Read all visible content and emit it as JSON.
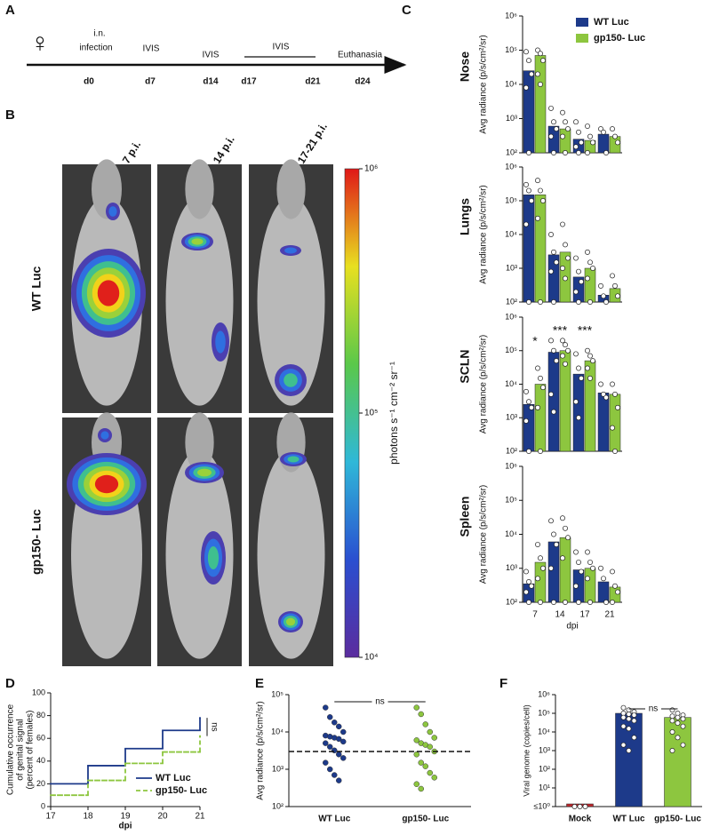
{
  "panel_labels": [
    "A",
    "B",
    "C",
    "D",
    "E",
    "F"
  ],
  "timeline": {
    "symbol": "♀",
    "labels": [
      "i.n.",
      "infection",
      "IVIS",
      "IVIS",
      "IVIS",
      "Euthanasia"
    ],
    "days": [
      "d0",
      "d7",
      "d14",
      "d17",
      "d21",
      "d24"
    ]
  },
  "imaging": {
    "columns": [
      "Day 7 p.i.",
      "Day 14 p.i.",
      "Day 17-21 p.i."
    ],
    "rows": [
      "WT Luc",
      "gp150- Luc"
    ],
    "colorbar": {
      "label": "photons s⁻¹ cm⁻² sr⁻¹",
      "lim": [
        10000,
        1000000
      ],
      "log": true,
      "ticks": [
        {
          "value": 10000,
          "label": "10⁴"
        },
        {
          "value": 100000,
          "label": "10⁵"
        },
        {
          "value": 1000000,
          "label": "10⁶"
        }
      ]
    }
  },
  "chart_data": [
    {
      "type": "bar",
      "title": "Nose",
      "ylabel": "Avg radiance (p/s/cm²/sr)",
      "log": true,
      "legend": "upper right",
      "ylim": [
        100,
        1000000
      ],
      "yticks": [
        {
          "value": 100,
          "label": "10²"
        },
        {
          "value": 1000,
          "label": "10³"
        },
        {
          "value": 10000,
          "label": "10⁴"
        },
        {
          "value": 100000,
          "label": "10⁵"
        },
        {
          "value": 1000000,
          "label": "10⁶"
        }
      ],
      "series": [
        {
          "name": "WT Luc",
          "color": "#1d3a8a",
          "values": [
            25000,
            600,
            250,
            350
          ],
          "points": [
            [
              90000,
              50000,
              20000,
              8000,
              100
            ],
            [
              2000,
              800,
              500,
              300,
              100
            ],
            [
              800,
              400,
              200,
              150,
              100
            ],
            [
              500,
              400,
              100
            ]
          ]
        },
        {
          "name": "gp150- Luc",
          "color": "#8dc63f",
          "values": [
            70000,
            500,
            230,
            300
          ],
          "points": [
            [
              100000,
              80000,
              50000,
              20000,
              10000
            ],
            [
              1500,
              800,
              500,
              300,
              100
            ],
            [
              600,
              300,
              200,
              100
            ],
            [
              500,
              300,
              200
            ]
          ]
        }
      ]
    },
    {
      "type": "bar",
      "title": "Lungs",
      "ylabel": "Avg radiance (p/s/cm²/sr)",
      "log": true,
      "ylim": [
        100,
        1000000
      ],
      "yticks": [
        {
          "value": 100,
          "label": "10²"
        },
        {
          "value": 1000,
          "label": "10³"
        },
        {
          "value": 10000,
          "label": "10⁴"
        },
        {
          "value": 100000,
          "label": "10⁵"
        },
        {
          "value": 1000000,
          "label": "10⁶"
        }
      ],
      "series": [
        {
          "color": "#1d3a8a",
          "values": [
            150000,
            2500,
            550,
            160
          ],
          "points": [
            [
              300000,
              200000,
              100000,
              20000,
              100
            ],
            [
              10000,
              3000,
              1500,
              800,
              100
            ],
            [
              2000,
              800,
              400,
              200,
              100
            ],
            [
              300,
              150,
              100
            ]
          ]
        },
        {
          "color": "#8dc63f",
          "values": [
            150000,
            3000,
            1000,
            250
          ],
          "points": [
            [
              400000,
              200000,
              100000,
              30000,
              100
            ],
            [
              20000,
              5000,
              2000,
              1000,
              500
            ],
            [
              3000,
              1500,
              1000,
              500,
              100
            ],
            [
              600,
              300,
              150
            ]
          ]
        }
      ]
    },
    {
      "type": "bar",
      "title": "SCLN",
      "ylabel": "Avg radiance (p/s/cm²/sr)",
      "log": true,
      "ylim": [
        100,
        1000000
      ],
      "yticks": [
        {
          "value": 100,
          "label": "10²"
        },
        {
          "value": 1000,
          "label": "10³"
        },
        {
          "value": 10000,
          "label": "10⁴"
        },
        {
          "value": 100000,
          "label": "10⁵"
        },
        {
          "value": 1000000,
          "label": "10⁶"
        }
      ],
      "annotations": [
        "*",
        "***",
        "***",
        null
      ],
      "series": [
        {
          "color": "#1d3a8a",
          "values": [
            2500,
            90000,
            20000,
            5500
          ],
          "points": [
            [
              6000,
              3000,
              2000,
              800,
              100
            ],
            [
              200000,
              100000,
              50000,
              5000,
              1500
            ],
            [
              80000,
              30000,
              15000,
              3000,
              1000
            ],
            [
              10000,
              5000,
              4000
            ]
          ]
        },
        {
          "color": "#8dc63f",
          "values": [
            10000,
            100000,
            50000,
            5000
          ],
          "points": [
            [
              30000,
              15000,
              8000,
              2000,
              100
            ],
            [
              200000,
              150000,
              100000,
              70000,
              40000
            ],
            [
              100000,
              70000,
              50000,
              30000,
              15000
            ],
            [
              10000,
              5000,
              2000,
              500,
              100
            ]
          ]
        }
      ]
    },
    {
      "type": "bar",
      "title": "Spleen",
      "ylabel": "Avg radiance (p/s/cm²/sr)",
      "xlabel": "dpi",
      "log": true,
      "categories": [
        "7",
        "14",
        "17",
        "21"
      ],
      "ylim": [
        100,
        1000000
      ],
      "yticks": [
        {
          "value": 100,
          "label": "10²"
        },
        {
          "value": 1000,
          "label": "10³"
        },
        {
          "value": 10000,
          "label": "10⁴"
        },
        {
          "value": 100000,
          "label": "10⁵"
        },
        {
          "value": 1000000,
          "label": "10⁶"
        }
      ],
      "series": [
        {
          "color": "#1d3a8a",
          "values": [
            350,
            6000,
            900,
            400
          ],
          "points": [
            [
              800,
              400,
              300,
              200,
              100
            ],
            [
              25000,
              10000,
              5000,
              1000,
              100
            ],
            [
              3000,
              1500,
              800,
              300,
              100
            ],
            [
              1000,
              500,
              100
            ]
          ]
        },
        {
          "color": "#8dc63f",
          "values": [
            1500,
            8000,
            1000,
            280
          ],
          "points": [
            [
              5000,
              2000,
              1000,
              500,
              100
            ],
            [
              30000,
              15000,
              8000,
              2000,
              100
            ],
            [
              3000,
              1500,
              1000,
              500,
              100
            ],
            [
              800,
              300,
              200,
              100
            ]
          ]
        }
      ]
    },
    {
      "type": "step",
      "ylabel": [
        "Cumulative occurrence",
        "of genital signal",
        "(percent of females)"
      ],
      "xlabel": "dpi",
      "x": [
        17,
        18,
        19,
        20,
        21
      ],
      "xlim": [
        17,
        21
      ],
      "xticks": [
        17,
        18,
        19,
        20,
        21
      ],
      "ylim": [
        0,
        100
      ],
      "yticks": [
        0,
        20,
        40,
        60,
        80,
        100
      ],
      "legend": "lower right",
      "annotation": "ns",
      "series": [
        {
          "name": "WT Luc",
          "color": "#1d3a8a",
          "dashed": false,
          "values": [
            20,
            36,
            51,
            67,
            78
          ]
        },
        {
          "name": "gp150- Luc",
          "color": "#8dc63f",
          "dashed": true,
          "values": [
            10,
            23,
            38,
            48,
            62
          ]
        }
      ]
    },
    {
      "type": "strip",
      "ylabel": "Avg radiance (p/s/cm²/sr)",
      "log": true,
      "annotation": "ns",
      "threshold": 3000,
      "categories": [
        "WT Luc",
        "gp150- Luc"
      ],
      "ylim": [
        100,
        100000
      ],
      "yticks": [
        {
          "value": 100,
          "label": "10²"
        },
        {
          "value": 1000,
          "label": "10³"
        },
        {
          "value": 10000,
          "label": "10⁴"
        },
        {
          "value": 100000,
          "label": "10⁵"
        }
      ],
      "groups": [
        {
          "color": "#1d3a8a",
          "values": [
            45000,
            25000,
            18000,
            14000,
            10000,
            8000,
            7500,
            7000,
            6500,
            5500,
            5000,
            4000,
            3200,
            2500,
            2000,
            1500,
            1000,
            700,
            500
          ]
        },
        {
          "color": "#8dc63f",
          "values": [
            45000,
            30000,
            16000,
            10000,
            7000,
            6000,
            5000,
            4500,
            4000,
            3000,
            2500,
            1500,
            1200,
            800,
            600,
            400,
            300
          ]
        }
      ]
    },
    {
      "type": "bar",
      "ylabel": "Viral genome (copies/cell)",
      "log": true,
      "annotation": "ns",
      "categories": [
        "Mock",
        "WT Luc",
        "gp150- Luc"
      ],
      "values": [
        1,
        100000,
        60000
      ],
      "colors": [
        "#c0272d",
        "#1d3a8a",
        "#8dc63f"
      ],
      "points": [
        [
          1,
          1,
          1
        ],
        [
          200000,
          150000,
          120000,
          100000,
          90000,
          80000,
          60000,
          50000,
          40000,
          20000,
          15000,
          5000,
          2000,
          1000
        ],
        [
          150000,
          100000,
          80000,
          70000,
          60000,
          50000,
          40000,
          30000,
          20000,
          10000,
          5000,
          2000,
          1000
        ]
      ],
      "ylim": [
        1,
        1000000
      ],
      "yticks": [
        {
          "value": 1,
          "label": "≤10⁰"
        },
        {
          "value": 10,
          "label": "10¹"
        },
        {
          "value": 100,
          "label": "10²"
        },
        {
          "value": 1000,
          "label": "10³"
        },
        {
          "value": 10000,
          "label": "10⁴"
        },
        {
          "value": 100000,
          "label": "10⁵"
        },
        {
          "value": 1000000,
          "label": "10⁶"
        }
      ]
    }
  ]
}
